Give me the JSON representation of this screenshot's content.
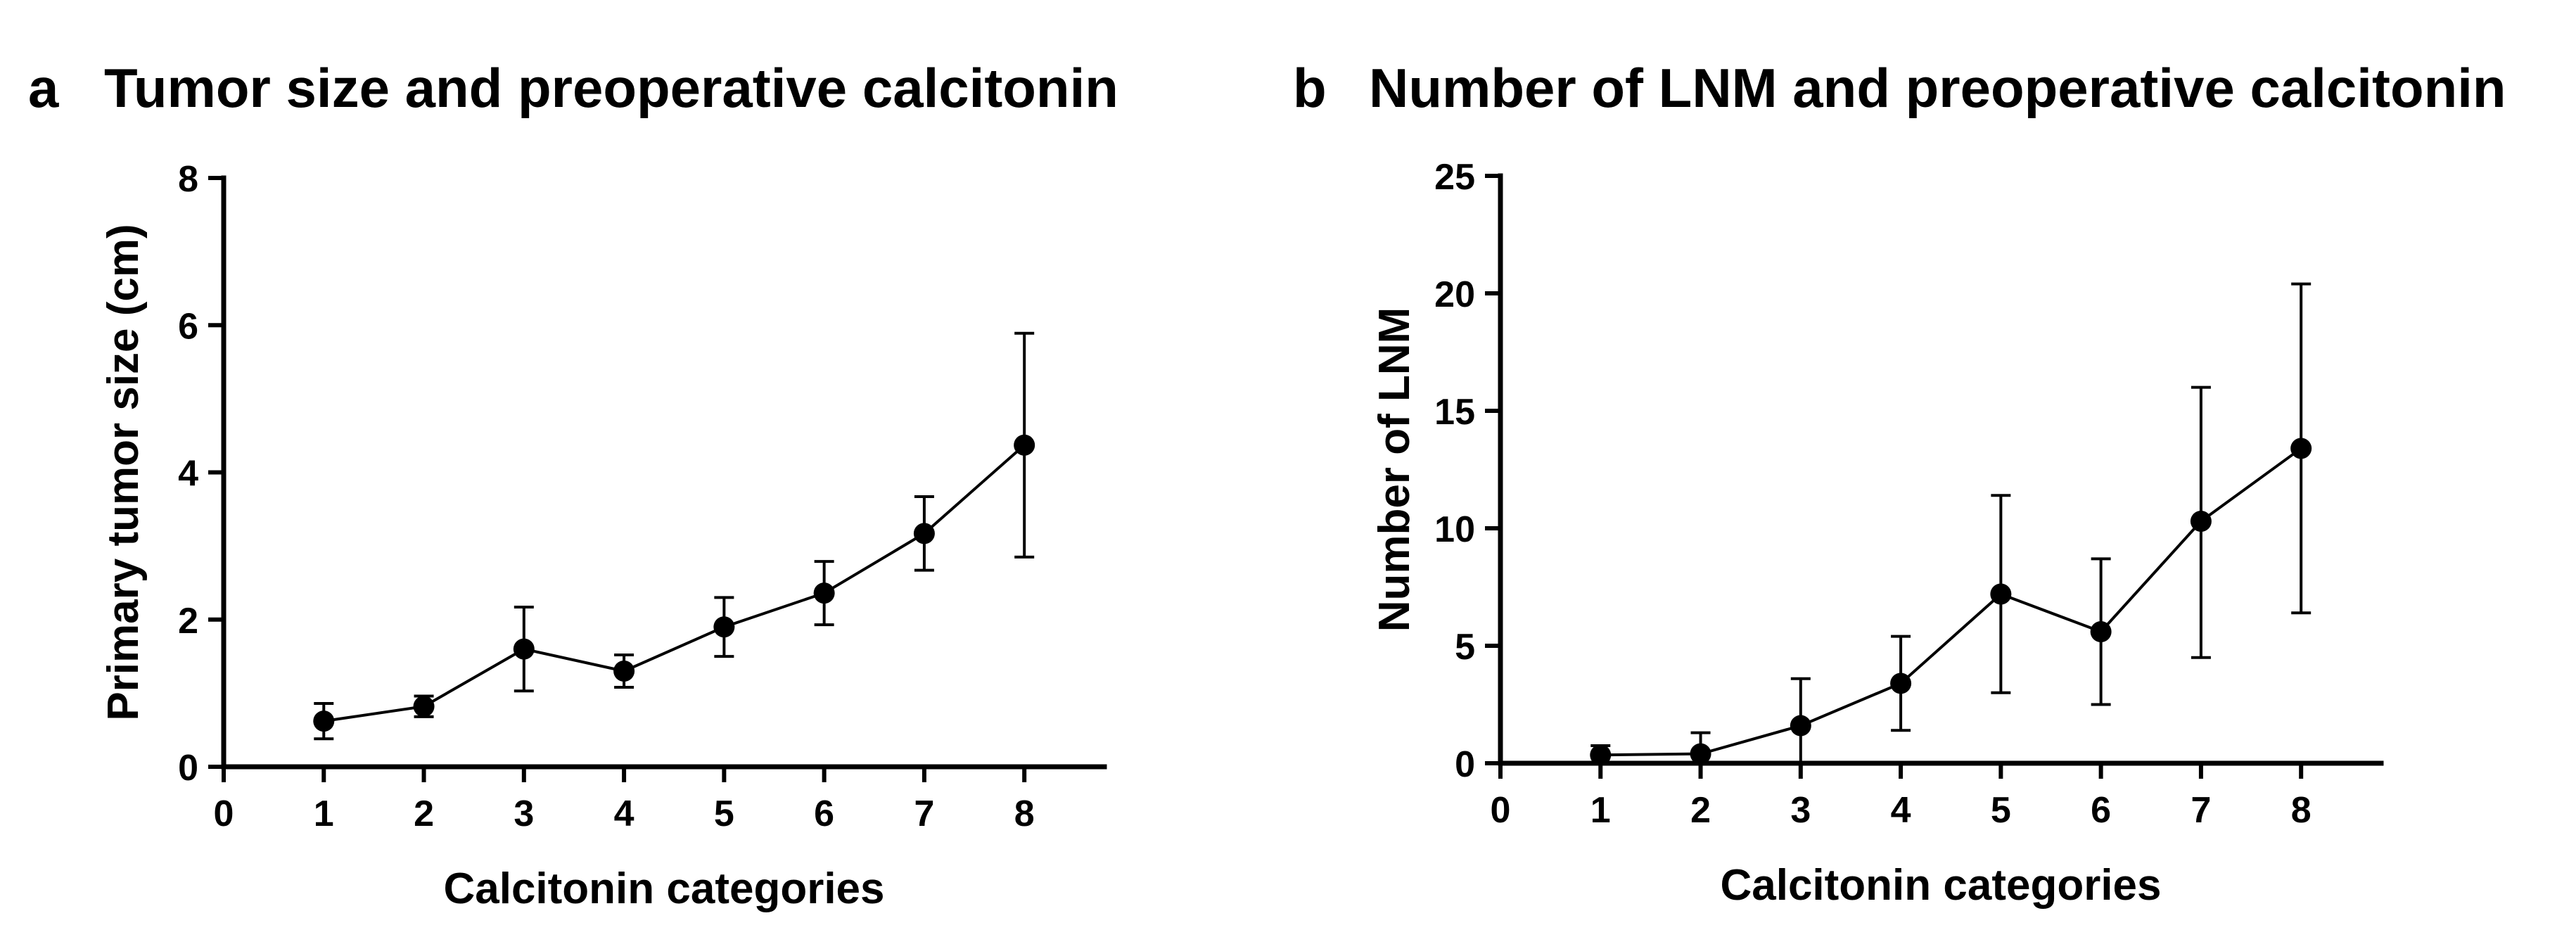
{
  "figure": {
    "panels": [
      {
        "letter": "a",
        "title": "Tumor size and preoperative calcitonin"
      },
      {
        "letter": "b",
        "title": "Number of LNM and preoperative calcitonin"
      }
    ]
  },
  "chart_data": [
    {
      "type": "line",
      "panel": "a",
      "title": "Tumor size and preoperative calcitonin",
      "xlabel": "Calcitonin categories",
      "ylabel": "Primary tumor size (cm)",
      "xlim": [
        0,
        8.8
      ],
      "ylim": [
        0,
        8
      ],
      "x_ticks": [
        0,
        1,
        2,
        3,
        4,
        5,
        6,
        7,
        8
      ],
      "y_ticks": [
        0,
        2,
        4,
        6,
        8
      ],
      "grid": false,
      "series": [
        {
          "name": "Primary tumor size",
          "x": [
            1,
            2,
            3,
            4,
            5,
            6,
            7,
            8
          ],
          "values": [
            0.62,
            0.82,
            1.6,
            1.3,
            1.9,
            2.36,
            3.17,
            4.37
          ],
          "error_low": [
            0.38,
            0.68,
            1.03,
            1.08,
            1.5,
            1.93,
            2.67,
            2.85
          ],
          "error_high": [
            0.86,
            0.96,
            2.17,
            1.52,
            2.3,
            2.79,
            3.67,
            5.89
          ]
        }
      ]
    },
    {
      "type": "line",
      "panel": "b",
      "title": "Number of LNM and preoperative calcitonin",
      "xlabel": "Calcitonin categories",
      "ylabel": "Number of LNM",
      "xlim": [
        0,
        8.8
      ],
      "ylim": [
        0,
        25
      ],
      "x_ticks": [
        0,
        1,
        2,
        3,
        4,
        5,
        6,
        7,
        8
      ],
      "y_ticks": [
        0,
        5,
        10,
        15,
        20,
        25
      ],
      "grid": false,
      "series": [
        {
          "name": "Number of LNM",
          "x": [
            1,
            2,
            3,
            4,
            5,
            6,
            7,
            8
          ],
          "values": [
            0.35,
            0.4,
            1.6,
            3.4,
            7.2,
            5.6,
            10.3,
            13.4
          ],
          "error_low": [
            0.0,
            0.0,
            0.0,
            1.4,
            3.0,
            2.5,
            4.5,
            6.4
          ],
          "error_high": [
            0.75,
            1.3,
            3.6,
            5.4,
            11.4,
            8.7,
            16.0,
            20.4
          ]
        }
      ]
    }
  ]
}
